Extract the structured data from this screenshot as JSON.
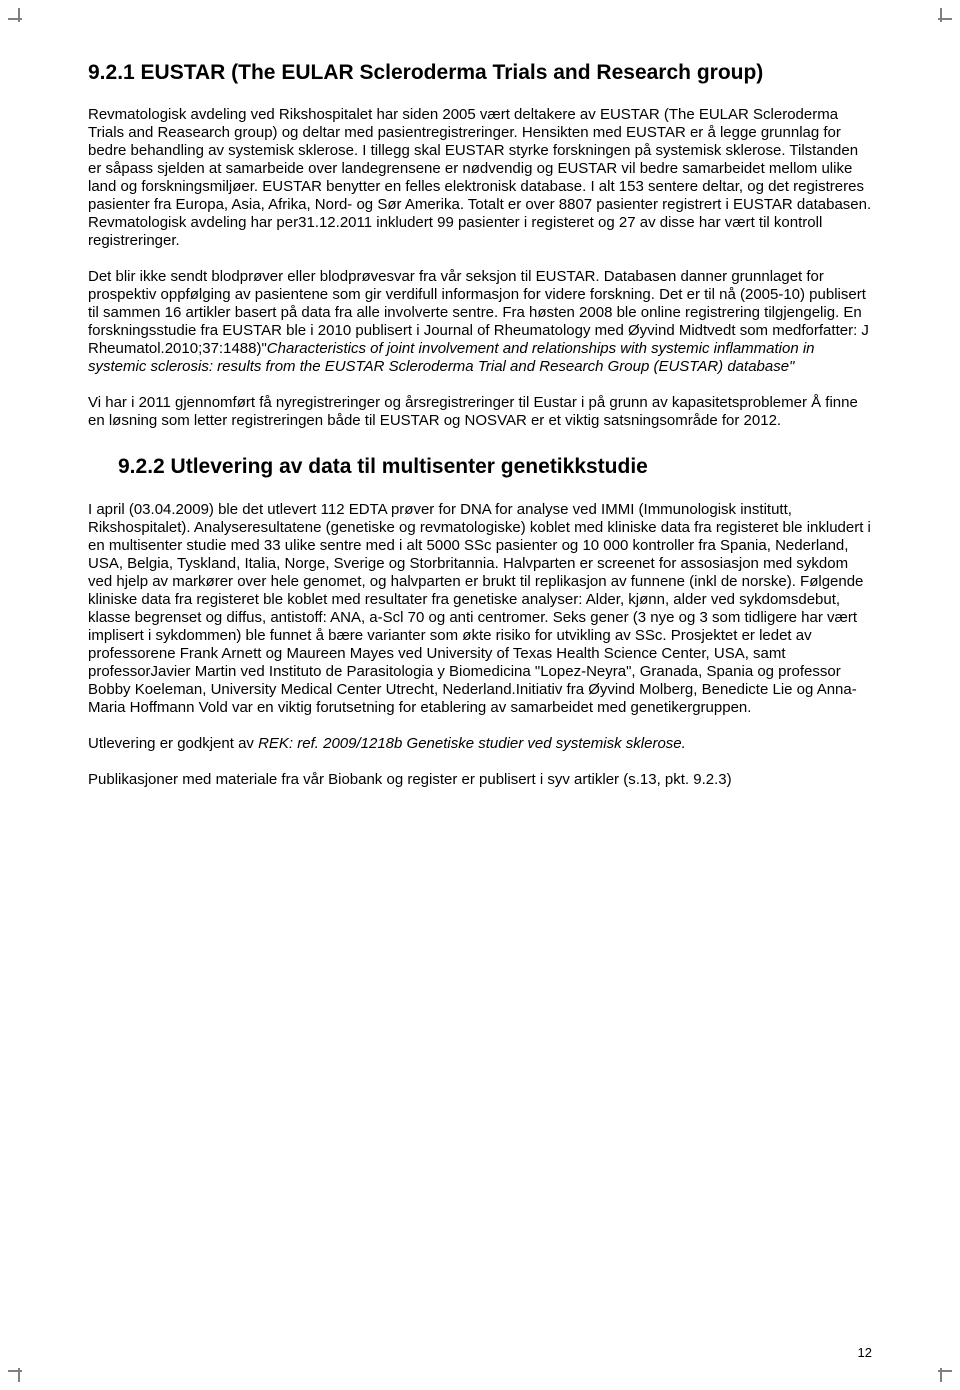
{
  "heading1": "9.2.1 EUSTAR (The EULAR Scleroderma Trials and Research group)",
  "para1_part1": "Revmatologisk avdeling ved Rikshospitalet har siden 2005 vært deltakere av EUSTAR (The EULAR Scleroderma Trials and Reasearch group) og deltar med pasientregistreringer. Hensikten med EUSTAR er å legge grunnlag for bedre behandling av systemisk sklerose. I tillegg skal EUSTAR styrke forskningen på systemisk sklerose. Tilstanden er såpass sjelden at samarbeide over landegrensene er nødvendig og EUSTAR vil bedre samarbeidet mellom ulike land og forskningsmiljøer. EUSTAR benytter en felles elektronisk database. I alt 153 sentere deltar, og det registreres pasienter fra Europa, Asia, Afrika, Nord- og Sør Amerika. Totalt er over 8807 pasienter registrert i EUSTAR databasen. Revmatologisk avdeling har per31.12.2011 inkludert 99 pasienter i registeret og 27 av disse har vært til kontroll registreringer.",
  "para2_part1": "Det blir ikke sendt blodprøver eller blodprøvesvar fra vår seksjon til EUSTAR. Databasen danner grunnlaget for prospektiv oppfølging av pasientene som gir verdifull informasjon for videre forskning. Det er til nå (2005-10) publisert til sammen 16 artikler basert på data fra alle involverte sentre. Fra høsten 2008 ble online registrering tilgjengelig",
  "para2_part2": ". En forskningsstudie fra EUSTAR ble i 2010 publisert i Journal of Rheumatology med Øyvind Midtvedt som medforfatter: J Rheumatol.2010;37:1488)\"",
  "para2_italic": "Characteristics of joint involvement    and relationships with systemic inflammation in systemic sclerosis: results from the EUSTAR Scleroderma Trial and Research Group (EUSTAR) database\"",
  "para3": "Vi har i 2011 gjennomført få nyregistreringer og årsregistreringer til Eustar i på grunn av kapasitetsproblemer  Å finne en løsning som  letter registreringen både til EUSTAR og NOSVAR er et viktig  satsningsområde for 2012.",
  "heading2": "9.2.2 Utlevering av data til multisenter genetikkstudie",
  "para4": "I april (03.04.2009) ble det utlevert 112 EDTA prøver for DNA for analyse ved IMMI (Immunologisk institutt, Rikshospitalet). Analyseresultatene (genetiske og revmatologiske) koblet med kliniske data fra registeret ble inkludert i en multisenter studie med 33 ulike sentre med i alt 5000 SSc pasienter og 10 000 kontroller fra Spania, Nederland, USA, Belgia, Tyskland, Italia, Norge, Sverige og Storbritannia. Halvparten er screenet for assosiasjon med sykdom ved hjelp av markører over hele genomet, og halvparten er brukt til replikasjon av funnene (inkl de norske). Følgende kliniske data fra registeret ble koblet med resultater fra genetiske analyser: Alder, kjønn, alder ved sykdomsdebut, klasse begrenset og diffus, antistoff: ANA, a-Scl 70 og anti centromer. Seks gener (3 nye og 3 som tidligere har vært implisert i sykdommen) ble funnet å bære varianter som økte risiko for utvikling av SSc. Prosjektet er ledet av professorene Frank Arnett og Maureen Mayes ved University of Texas Health Science Center, USA, samt professorJavier Martin ved Instituto de Parasitologia y Biomedicina \"Lopez-Neyra\",  Granada, Spania og professor Bobby Koeleman, University Medical Center Utrecht, Nederland.Initiativ fra Øyvind Molberg, Benedicte Lie og Anna-Maria Hoffmann Vold var en viktig  forutsetning for etablering av samarbeidet med genetikergruppen.",
  "para5_part1": "Utlevering er godkjent av ",
  "para5_italic": "REK: ref. 2009/1218b Genetiske studier ved systemisk sklerose.",
  "para6": "Publikasjoner med materiale fra vår Biobank og register er publisert i syv artikler (s.13, pkt. 9.2.3)",
  "page_number": "12"
}
